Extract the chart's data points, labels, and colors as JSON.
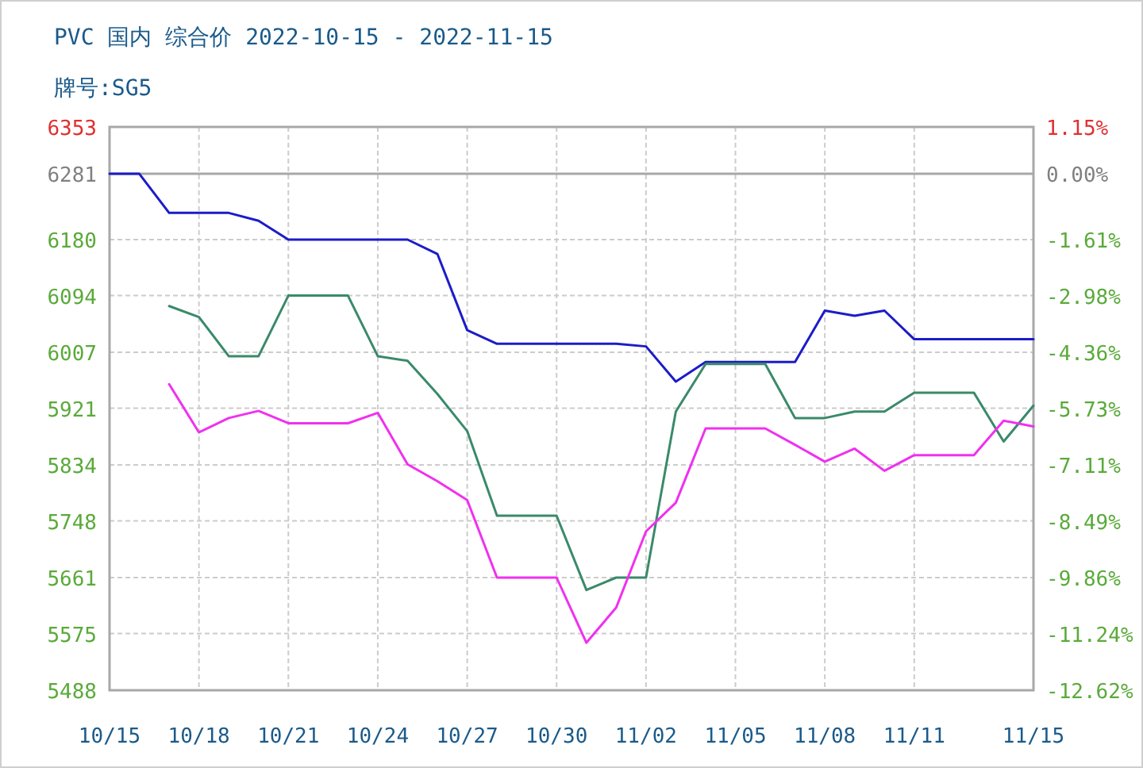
{
  "chart_data": {
    "type": "line",
    "title": "PVC 国内 综合价 2022-10-15 - 2022-11-15",
    "subtitle": "牌号:SG5",
    "x": [
      "2022-10-15",
      "2022-10-16",
      "2022-10-17",
      "2022-10-18",
      "2022-10-19",
      "2022-10-20",
      "2022-10-21",
      "2022-10-22",
      "2022-10-23",
      "2022-10-24",
      "2022-10-25",
      "2022-10-26",
      "2022-10-27",
      "2022-10-28",
      "2022-10-29",
      "2022-10-30",
      "2022-10-31",
      "2022-11-01",
      "2022-11-02",
      "2022-11-03",
      "2022-11-04",
      "2022-11-05",
      "2022-11-06",
      "2022-11-07",
      "2022-11-08",
      "2022-11-09",
      "2022-11-10",
      "2022-11-11",
      "2022-11-12",
      "2022-11-13",
      "2022-11-14",
      "2022-11-15"
    ],
    "series": [
      {
        "color": "#1c1cc8",
        "values": [
          6281,
          6281,
          6221,
          6221,
          6221,
          6209,
          6180,
          6180,
          6180,
          6180,
          6180,
          6158,
          6041,
          6020,
          6020,
          6020,
          6020,
          6020,
          6016,
          5962,
          5992,
          5992,
          5992,
          5992,
          6071,
          6063,
          6071,
          6027,
          6027,
          6027,
          6027,
          6027
        ]
      },
      {
        "color": "#3a8a6a",
        "values": [
          null,
          null,
          6078,
          6061,
          6001,
          6001,
          6094,
          6094,
          6094,
          6001,
          5994,
          5943,
          5886,
          5756,
          5756,
          5756,
          5642,
          5661,
          5661,
          5916,
          5989,
          5989,
          5989,
          5906,
          5906,
          5916,
          5916,
          5945,
          5945,
          5945,
          5870,
          5925
        ]
      },
      {
        "color": "#f030f0",
        "values": [
          null,
          null,
          5958,
          5884,
          5906,
          5917,
          5898,
          5898,
          5898,
          5914,
          5835,
          5809,
          5780,
          5661,
          5661,
          5661,
          5561,
          5615,
          5732,
          5776,
          5890,
          5890,
          5890,
          5865,
          5839,
          5859,
          5825,
          5849,
          5849,
          5849,
          5902,
          5893
        ]
      }
    ],
    "xlim": [
      "2022-10-15",
      "2022-11-15"
    ],
    "xticks": [
      {
        "value": "2022-10-15",
        "label": "10/15"
      },
      {
        "value": "2022-10-18",
        "label": "10/18"
      },
      {
        "value": "2022-10-21",
        "label": "10/21"
      },
      {
        "value": "2022-10-24",
        "label": "10/24"
      },
      {
        "value": "2022-10-27",
        "label": "10/27"
      },
      {
        "value": "2022-10-30",
        "label": "10/30"
      },
      {
        "value": "2022-11-02",
        "label": "11/02"
      },
      {
        "value": "2022-11-05",
        "label": "11/05"
      },
      {
        "value": "2022-11-08",
        "label": "11/08"
      },
      {
        "value": "2022-11-11",
        "label": "11/11"
      },
      {
        "value": "2022-11-15",
        "label": "11/15"
      }
    ],
    "ylim": [
      5488,
      6353
    ],
    "yticks": [
      5488,
      5575,
      5661,
      5748,
      5834,
      5921,
      6007,
      6094,
      6180,
      6281,
      6353
    ],
    "y2lim": [
      -12.62,
      1.15
    ],
    "y2ticks": [
      {
        "value": -12.62,
        "label": "-12.62%"
      },
      {
        "value": -11.24,
        "label": "-11.24%"
      },
      {
        "value": -9.86,
        "label": "-9.86%"
      },
      {
        "value": -8.49,
        "label": "-8.49%"
      },
      {
        "value": -7.11,
        "label": "-7.11%"
      },
      {
        "value": -5.73,
        "label": "-5.73%"
      },
      {
        "value": -4.36,
        "label": "-4.36%"
      },
      {
        "value": -2.98,
        "label": "-2.98%"
      },
      {
        "value": -1.61,
        "label": "-1.61%"
      },
      {
        "value": 0,
        "label": "0.00%"
      },
      {
        "value": 1.15,
        "label": "1.15%"
      }
    ],
    "ref_lines": [
      {
        "axis": "y",
        "value": 6281,
        "color": "#a8a8a8",
        "line_style": "solid"
      }
    ],
    "grid": true,
    "marker": "none",
    "line_style": "solid"
  }
}
